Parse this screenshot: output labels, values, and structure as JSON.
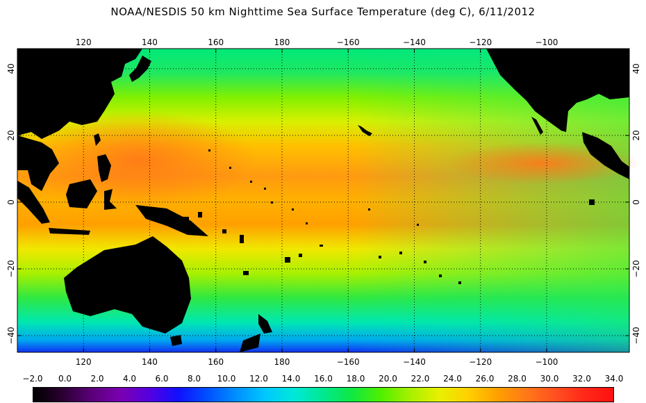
{
  "title": "NOAA/NESDIS 50 km Nighttime Sea Surface Temperature (deg C), 6/11/2012",
  "map": {
    "lon_range": [
      100,
      285
    ],
    "lat_range": [
      -45,
      46
    ],
    "lon_ticks": [
      {
        "value": 120,
        "label": "120"
      },
      {
        "value": 140,
        "label": "140"
      },
      {
        "value": 160,
        "label": "160"
      },
      {
        "value": 180,
        "label": "180"
      },
      {
        "value": 200,
        "label": "−160"
      },
      {
        "value": 220,
        "label": "−140"
      },
      {
        "value": 240,
        "label": "−120"
      },
      {
        "value": 260,
        "label": "−100"
      }
    ],
    "lat_ticks": [
      {
        "value": 40,
        "label": "40"
      },
      {
        "value": 20,
        "label": "20"
      },
      {
        "value": 0,
        "label": "0"
      },
      {
        "value": -20,
        "label": "−20"
      },
      {
        "value": -40,
        "label": "−40"
      }
    ],
    "land_color": "#000000",
    "grid": "dotted"
  },
  "colorbar": {
    "labels": [
      "−2.0",
      "0.0",
      "2.0",
      "4.0",
      "6.0",
      "8.0",
      "10.0",
      "12.0",
      "14.0",
      "16.0",
      "18.0",
      "20.0",
      "22.0",
      "24.0",
      "26.0",
      "28.0",
      "30.0",
      "32.0",
      "34.0"
    ],
    "min": -2,
    "max": 34,
    "unit": "deg C"
  }
}
